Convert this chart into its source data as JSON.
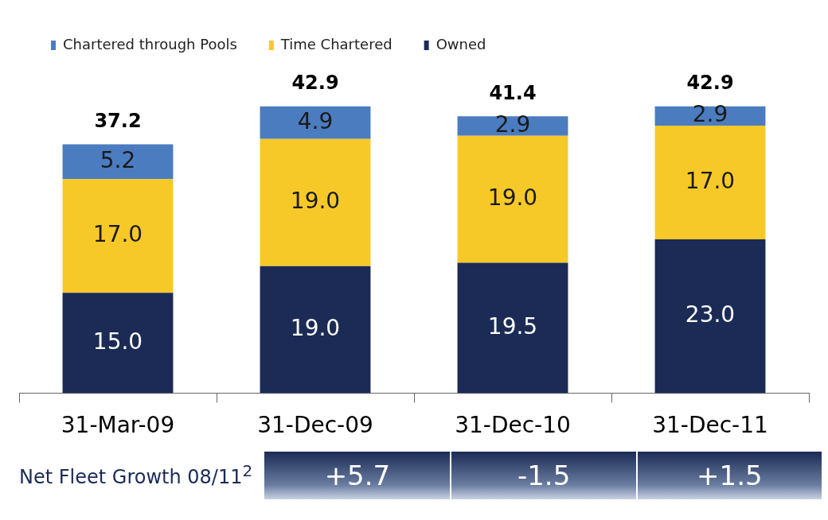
{
  "chart_data": {
    "type": "bar",
    "stacked": true,
    "legend": "top left",
    "grid": false,
    "categories": [
      "31-Mar-09",
      "31-Dec-09",
      "31-Dec-10",
      "31-Dec-11"
    ],
    "series": [
      {
        "name": "Owned",
        "color": "#1b2b55",
        "values": [
          15.0,
          19.0,
          19.5,
          23.0
        ],
        "value_labels": [
          "15.0",
          "19.0",
          "19.5",
          "23.0"
        ]
      },
      {
        "name": "Time Chartered",
        "color": "#f7c928",
        "values": [
          17.0,
          19.0,
          19.0,
          17.0
        ],
        "value_labels": [
          "17.0",
          "19.0",
          "19.0",
          "17.0"
        ]
      },
      {
        "name": "Chartered through Pools",
        "color": "#4b7cc0",
        "values": [
          5.2,
          4.9,
          2.9,
          2.9
        ],
        "value_labels": [
          "5.2",
          "4.9",
          "2.9",
          "2.9"
        ]
      }
    ],
    "totals": [
      "37.2",
      "42.9",
      "41.4",
      "42.9"
    ],
    "annotations": [
      "Net Fleet Growth 08/11$^{2}$",
      "+5.7",
      "-1.5",
      "+1.5"
    ]
  }
}
